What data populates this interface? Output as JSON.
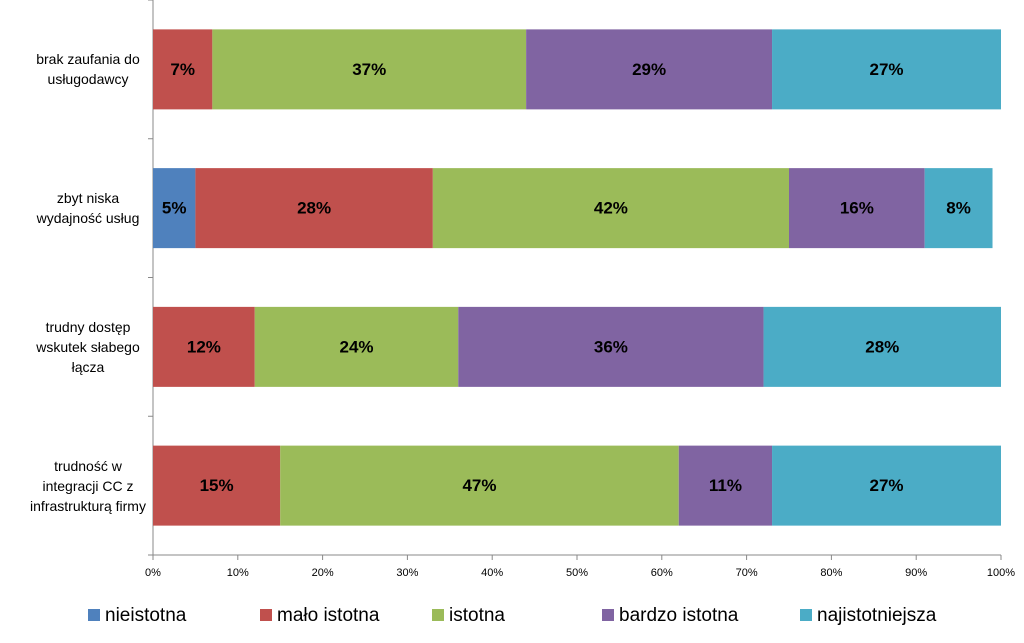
{
  "chart_data": {
    "type": "stacked_barh",
    "categories": [
      "brak zaufania do\nusługodawcy",
      "zbyt niska\nwydajność usług",
      "trudny dostęp\nwskutek słabego\nłącza",
      "trudność w\nintegracji CC z\ninfrastrukturą firmy"
    ],
    "series": [
      {
        "name": "nieistotna",
        "color": "#4f81bd",
        "values": [
          null,
          5,
          null,
          null
        ],
        "value_labels": [
          null,
          "5%",
          null,
          null
        ]
      },
      {
        "name": "mało istotna",
        "color": "#c0504d",
        "values": [
          7,
          28,
          12,
          15
        ],
        "value_labels": [
          "7%",
          "28%",
          "12%",
          "15%"
        ]
      },
      {
        "name": "istotna",
        "color": "#9bbb59",
        "values": [
          37,
          42,
          24,
          47
        ],
        "value_labels": [
          "37%",
          "42%",
          "24%",
          "47%"
        ]
      },
      {
        "name": "bardzo istotna",
        "color": "#8064a2",
        "values": [
          29,
          16,
          36,
          11
        ],
        "value_labels": [
          "29%",
          "16%",
          "36%",
          "11%"
        ]
      },
      {
        "name": "najistotniejsza",
        "color": "#4bacc6",
        "values": [
          27,
          8,
          28,
          27
        ],
        "value_labels": [
          "27%",
          "8%",
          "28%",
          "27%"
        ]
      }
    ],
    "xlim": [
      0,
      100
    ],
    "xticks": [
      {
        "value": 0,
        "label": "0%"
      },
      {
        "value": 10,
        "label": "10%"
      },
      {
        "value": 20,
        "label": "20%"
      },
      {
        "value": 30,
        "label": "30%"
      },
      {
        "value": 40,
        "label": "40%"
      },
      {
        "value": 50,
        "label": "50%"
      },
      {
        "value": 60,
        "label": "60%"
      },
      {
        "value": 70,
        "label": "70%"
      },
      {
        "value": 80,
        "label": "80%"
      },
      {
        "value": 90,
        "label": "90%"
      },
      {
        "value": 100,
        "label": "100%"
      }
    ],
    "legend": "bottom"
  }
}
